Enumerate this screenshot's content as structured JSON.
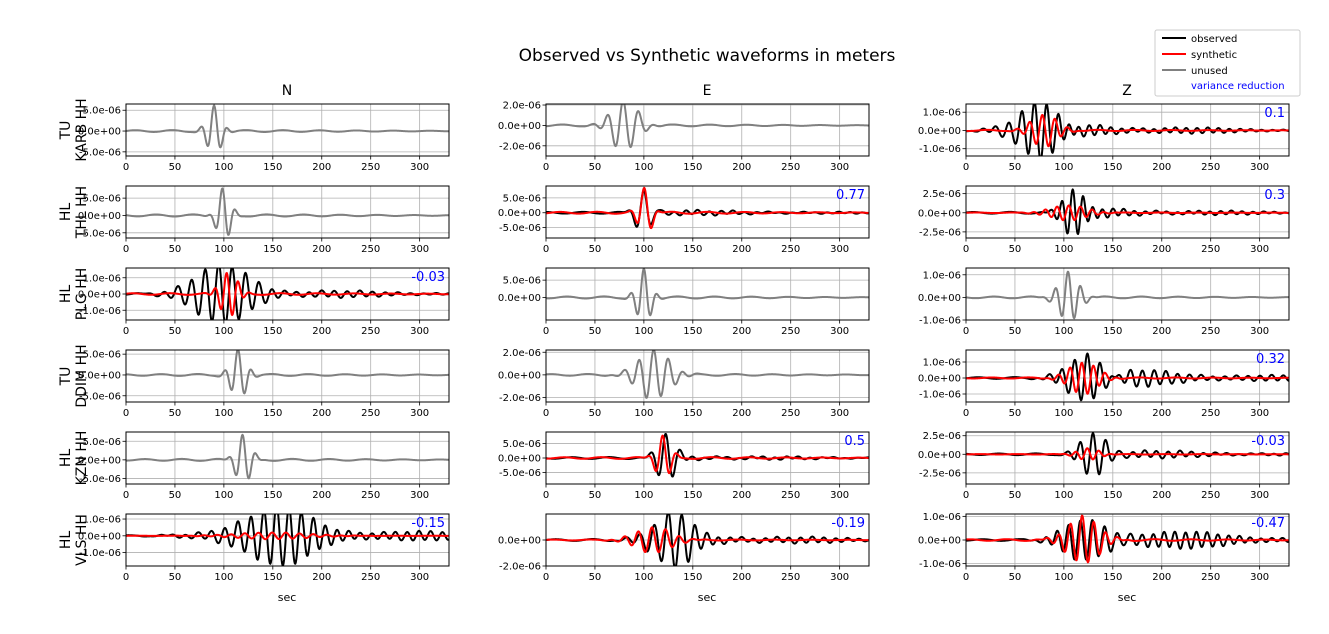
{
  "figure": {
    "title": "Observed vs Synthetic waveforms in meters",
    "xlabel": "sec",
    "columns": [
      "N",
      "E",
      "Z"
    ],
    "stations": [
      {
        "network": "TU",
        "station": "KARB HH"
      },
      {
        "network": "HL",
        "station": "THL HH"
      },
      {
        "network": "HL",
        "station": "PLG HH"
      },
      {
        "network": "TU",
        "station": "DDIM HH"
      },
      {
        "network": "HL",
        "station": "KZN HH"
      },
      {
        "network": "HL",
        "station": "VLS HH"
      }
    ]
  },
  "legend": {
    "position": "top-right",
    "entries": [
      {
        "label": "observed",
        "color": "#000000"
      },
      {
        "label": "synthetic",
        "color": "#ff0000"
      },
      {
        "label": "unused",
        "color": "#808080"
      },
      {
        "label": "variance reduction",
        "color": "#0000ff",
        "text_only": true
      }
    ]
  },
  "colors": {
    "observed": "#000000",
    "synthetic": "#ff0000",
    "unused": "#808080",
    "vr": "#0000ff",
    "grid": "#b0b0b0"
  },
  "chart_data": {
    "type": "line",
    "xlim": [
      0,
      330
    ],
    "xticks": [
      0,
      50,
      100,
      150,
      200,
      250,
      300
    ],
    "xticklabels": [
      "0",
      "50",
      "100",
      "150",
      "200",
      "250",
      "300"
    ],
    "xlabel": "sec",
    "panels": [
      {
        "row": 0,
        "col": 0,
        "mode": "unused",
        "ylim": [
          -6e-06,
          6.5e-06
        ],
        "yticks": [
          5e-06,
          0,
          -5e-06
        ],
        "yticklabels": [
          "5.0e-06",
          "0.0e+00",
          "-5.0e-06"
        ],
        "vr": "",
        "obs": {
          "amp": 6e-06,
          "center": 90,
          "width": 10,
          "period": 14,
          "phase": 0
        }
      },
      {
        "row": 0,
        "col": 1,
        "mode": "unused",
        "ylim": [
          -3e-06,
          2.1e-06
        ],
        "yticks": [
          2e-06,
          0,
          -2e-06
        ],
        "yticklabels": [
          "2.0e-06",
          "0.0e+00",
          "-2.0e-06"
        ],
        "vr": "",
        "obs": {
          "amp": 2.5e-06,
          "center": 80,
          "width": 18,
          "period": 16,
          "phase": 0.5
        }
      },
      {
        "row": 0,
        "col": 2,
        "mode": "fit",
        "ylim": [
          -1.4e-06,
          1.45e-06
        ],
        "yticks": [
          1e-06,
          0,
          -1e-06
        ],
        "yticklabels": [
          "1.0e-06",
          "0.0e+00",
          "-1.0e-06"
        ],
        "vr": "0.1",
        "obs": {
          "amp": 1.3e-06,
          "center": 70,
          "width": 30,
          "period": 13,
          "phase": 0.2,
          "coda": 0.35,
          "coda_period": 11
        },
        "syn": {
          "amp": 9e-07,
          "center": 80,
          "width": 18,
          "period": 13,
          "phase": 1.0
        }
      },
      {
        "row": 1,
        "col": 0,
        "mode": "unused",
        "ylim": [
          -6.5e-06,
          8.5e-06
        ],
        "yticks": [
          5e-06,
          0,
          -5e-06
        ],
        "yticklabels": [
          "5.0e-06",
          "0.0e+00",
          "-5.0e-06"
        ],
        "vr": "",
        "obs": {
          "amp": 8e-06,
          "center": 100,
          "width": 9,
          "period": 14,
          "phase": 0.8
        }
      },
      {
        "row": 1,
        "col": 1,
        "mode": "fit",
        "ylim": [
          -8.5e-06,
          9e-06
        ],
        "yticks": [
          5e-06,
          0,
          -5e-06
        ],
        "yticklabels": [
          "5.0e-06",
          "0.0e+00",
          "-5.0e-06"
        ],
        "vr": "0.77",
        "obs": {
          "amp": 8e-06,
          "center": 100,
          "width": 10,
          "period": 16,
          "phase": 0,
          "coda": 0.12,
          "coda_period": 12
        },
        "syn": {
          "amp": 8.5e-06,
          "center": 101,
          "width": 9,
          "period": 16,
          "phase": 0.3
        }
      },
      {
        "row": 1,
        "col": 2,
        "mode": "fit",
        "ylim": [
          -3.3e-06,
          3.5e-06
        ],
        "yticks": [
          2.5e-06,
          0,
          -2.5e-06
        ],
        "yticklabels": [
          "2.5e-06",
          "0.0e+00",
          "-2.5e-06"
        ],
        "vr": "0.3",
        "obs": {
          "amp": 3.2e-06,
          "center": 110,
          "width": 15,
          "period": 11,
          "phase": 0.4,
          "coda": 0.2,
          "coda_period": 11
        },
        "syn": {
          "amp": 1e-06,
          "center": 105,
          "width": 25,
          "period": 12,
          "phase": 0
        }
      },
      {
        "row": 2,
        "col": 0,
        "mode": "fit",
        "ylim": [
          -1.6e-06,
          1.6e-06
        ],
        "yticks": [
          1e-06,
          0,
          -1e-06
        ],
        "yticklabels": [
          "1.0e-06",
          "0.0e+00",
          "-1.0e-06"
        ],
        "vr": "-0.03",
        "obs": {
          "amp": 1.5e-06,
          "center": 95,
          "width": 40,
          "period": 14,
          "phase": 0.3,
          "coda": 0.3,
          "coda_period": 13
        },
        "syn": {
          "amp": 1.4e-06,
          "center": 105,
          "width": 12,
          "period": 12,
          "phase": 1.2
        }
      },
      {
        "row": 2,
        "col": 1,
        "mode": "unused",
        "ylim": [
          -6.5e-06,
          8.5e-06
        ],
        "yticks": [
          5e-06,
          0
        ],
        "yticklabels": [
          "5.0e-06",
          "0.0e+00"
        ],
        "vr": "",
        "obs": {
          "amp": 8e-06,
          "center": 100,
          "width": 10,
          "period": 14,
          "phase": 0
        }
      },
      {
        "row": 2,
        "col": 2,
        "mode": "unused",
        "ylim": [
          -1e-06,
          1.3e-06
        ],
        "yticks": [
          1e-06,
          0,
          -1e-06
        ],
        "yticklabels": [
          "1.0e-06",
          "0.0e+00",
          "-1.0e-06"
        ],
        "vr": "",
        "obs": {
          "amp": 1.1e-06,
          "center": 105,
          "width": 14,
          "period": 13,
          "phase": 0.4
        }
      },
      {
        "row": 3,
        "col": 0,
        "mode": "unused",
        "ylim": [
          -6.5e-06,
          6e-06
        ],
        "yticks": [
          5e-06,
          0,
          -5e-06
        ],
        "yticklabels": [
          "5.0e-06",
          "0.0e+00",
          "-5.0e-06"
        ],
        "vr": "",
        "obs": {
          "amp": 6e-06,
          "center": 115,
          "width": 11,
          "period": 14,
          "phase": 0.3
        }
      },
      {
        "row": 3,
        "col": 1,
        "mode": "unused",
        "ylim": [
          -2.4e-06,
          2.2e-06
        ],
        "yticks": [
          2e-06,
          0,
          -2e-06
        ],
        "yticklabels": [
          "2.0e-06",
          "0.0e+00",
          "-2.0e-06"
        ],
        "vr": "",
        "obs": {
          "amp": 2.2e-06,
          "center": 110,
          "width": 22,
          "period": 15,
          "phase": 0
        }
      },
      {
        "row": 3,
        "col": 2,
        "mode": "fit",
        "ylim": [
          -1.5e-06,
          1.75e-06
        ],
        "yticks": [
          1e-06,
          0,
          -1e-06
        ],
        "yticklabels": [
          "1.0e-06",
          "0.0e+00",
          "-1.0e-06"
        ],
        "vr": "0.32",
        "obs": {
          "amp": 1.6e-06,
          "center": 125,
          "width": 25,
          "period": 13,
          "phase": 0.3,
          "coda": 0.4,
          "coda_period": 12
        },
        "syn": {
          "amp": 1e-06,
          "center": 120,
          "width": 20,
          "period": 12,
          "phase": 0.9
        }
      },
      {
        "row": 4,
        "col": 0,
        "mode": "unused",
        "ylim": [
          -6.5e-06,
          7.5e-06
        ],
        "yticks": [
          5e-06,
          0,
          -5e-06
        ],
        "yticklabels": [
          "5.0e-06",
          "0.0e+00",
          "-5.0e-06"
        ],
        "vr": "",
        "obs": {
          "amp": 7e-06,
          "center": 120,
          "width": 10,
          "period": 14,
          "phase": 0.5
        }
      },
      {
        "row": 4,
        "col": 1,
        "mode": "fit",
        "ylim": [
          -9e-06,
          9e-06
        ],
        "yticks": [
          5e-06,
          0,
          -5e-06
        ],
        "yticklabels": [
          "5.0e-06",
          "0.0e+00",
          "-5.0e-06"
        ],
        "vr": "0.5",
        "obs": {
          "amp": 9e-06,
          "center": 122,
          "width": 12,
          "period": 15,
          "phase": 0,
          "coda": 0.1,
          "coda_period": 12
        },
        "syn": {
          "amp": 8e-06,
          "center": 120,
          "width": 10,
          "period": 15,
          "phase": 0.4
        }
      },
      {
        "row": 4,
        "col": 2,
        "mode": "fit",
        "ylim": [
          -4e-06,
          3e-06
        ],
        "yticks": [
          2.5e-06,
          0,
          -2.5e-06
        ],
        "yticklabels": [
          "2.5e-06",
          "0.0e+00",
          "-2.5e-06"
        ],
        "vr": "-0.03",
        "obs": {
          "amp": 3.2e-06,
          "center": 130,
          "width": 18,
          "period": 13,
          "phase": 0.2,
          "coda": 0.2,
          "coda_period": 12
        },
        "syn": {
          "amp": 8e-07,
          "center": 125,
          "width": 15,
          "period": 12,
          "phase": 0.6
        }
      },
      {
        "row": 5,
        "col": 0,
        "mode": "fit",
        "ylim": [
          -1.8e-06,
          1.3e-06
        ],
        "yticks": [
          1e-06,
          0,
          -1e-06
        ],
        "yticklabels": [
          "1.0e-06",
          "0.0e+00",
          "-1.0e-06"
        ],
        "vr": "-0.15",
        "obs": {
          "amp": 1.5e-06,
          "center": 140,
          "width": 45,
          "period": 13,
          "phase": 0,
          "coda": 0.55,
          "coda_period": 12
        },
        "syn": {
          "amp": 2e-07,
          "center": 150,
          "width": 50,
          "period": 14,
          "phase": 0.3
        }
      },
      {
        "row": 5,
        "col": 1,
        "mode": "fit",
        "ylim": [
          -2e-06,
          2e-06
        ],
        "yticks": [
          0,
          -2e-06
        ],
        "yticklabels": [
          "0.0e+00",
          "-2.0e-06"
        ],
        "vr": "-0.19",
        "obs": {
          "amp": 2.2e-06,
          "center": 125,
          "width": 25,
          "period": 14,
          "phase": 0.3,
          "coda": 0.25,
          "coda_period": 12
        },
        "syn": {
          "amp": 1e-06,
          "center": 110,
          "width": 25,
          "period": 14,
          "phase": 0.8
        }
      },
      {
        "row": 5,
        "col": 2,
        "mode": "fit",
        "ylim": [
          -1.1e-06,
          1.1e-06
        ],
        "yticks": [
          1e-06,
          0,
          -1e-06
        ],
        "yticklabels": [
          "1.0e-06",
          "0.0e+00",
          "-1.0e-06"
        ],
        "vr": "-0.47",
        "obs": {
          "amp": 1.1e-06,
          "center": 130,
          "width": 28,
          "period": 12,
          "phase": 0.1,
          "coda": 0.55,
          "coda_period": 11
        },
        "syn": {
          "amp": 1e-06,
          "center": 120,
          "width": 22,
          "period": 12,
          "phase": 0.7
        }
      }
    ]
  }
}
